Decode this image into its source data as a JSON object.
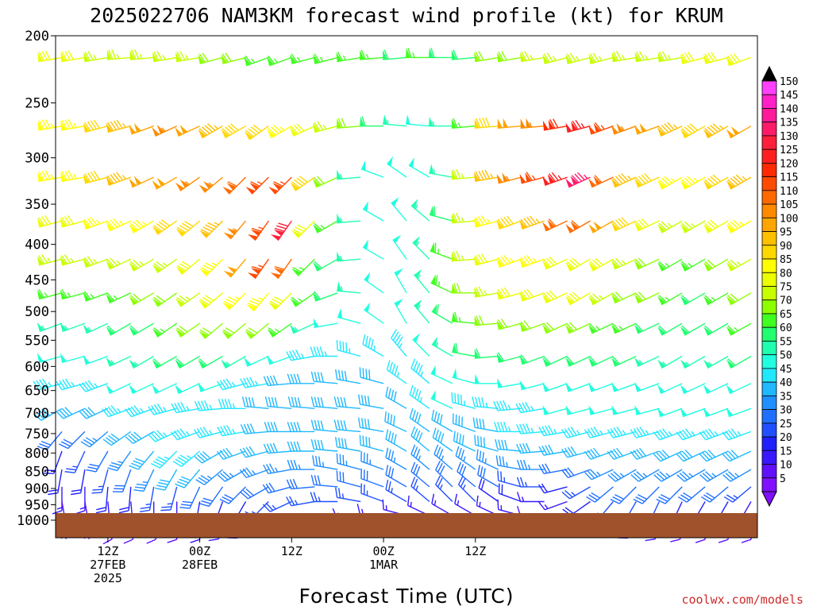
{
  "chart_data": {
    "type": "wind-barb-time-height",
    "title": "2025022706 NAM3KM forecast wind profile (kt) for KRUM",
    "xlabel": "Forecast Time (UTC)",
    "ylabel": "",
    "y_ticks": [
      200,
      250,
      300,
      350,
      400,
      450,
      500,
      550,
      600,
      650,
      700,
      750,
      800,
      850,
      900,
      950,
      1000
    ],
    "ylim": [
      1000,
      200
    ],
    "x_ticks": [
      {
        "label": "12Z",
        "date": "27FEB",
        "year": "2025"
      },
      {
        "label": "00Z",
        "date": "28FEB",
        "year": ""
      },
      {
        "label": "12Z",
        "date": "",
        "year": ""
      },
      {
        "label": "00Z",
        "date": "1MAR",
        "year": ""
      },
      {
        "label": "12Z",
        "date": "",
        "year": ""
      }
    ],
    "colorbar": {
      "levels": [
        150,
        145,
        140,
        135,
        130,
        125,
        120,
        115,
        110,
        105,
        100,
        95,
        90,
        85,
        80,
        75,
        70,
        65,
        60,
        55,
        50,
        45,
        40,
        35,
        30,
        25,
        20,
        15,
        10,
        5
      ],
      "colors": [
        "#ff40ff",
        "#ff20c8",
        "#ff1a9a",
        "#ff1a6a",
        "#ff1f3a",
        "#ff1f1f",
        "#ff2a00",
        "#ff4a00",
        "#ff6a00",
        "#ff8a00",
        "#ffa500",
        "#ffc000",
        "#ffd800",
        "#ffff00",
        "#ecff00",
        "#c8ff00",
        "#8cff00",
        "#40ff20",
        "#20ff70",
        "#20ffb0",
        "#20ffe0",
        "#20e8ff",
        "#20b8ff",
        "#2090ff",
        "#2070ff",
        "#2050ff",
        "#2020ff",
        "#3818ff",
        "#6010ff",
        "#8010ff"
      ]
    },
    "wind_levels_hpa": [
      215,
      270,
      320,
      370,
      420,
      470,
      520,
      580,
      635,
      690,
      745,
      795,
      845,
      895,
      940,
      985
    ],
    "times_h": [
      0,
      3,
      6,
      9,
      12,
      15,
      18,
      21,
      24,
      27,
      30,
      33,
      36,
      39,
      42,
      45,
      48,
      51,
      54,
      57,
      60,
      63,
      66,
      69,
      72,
      75,
      78,
      81,
      84,
      87,
      90
    ],
    "wind_speed_kt": [
      [
        80,
        80,
        75,
        75,
        75,
        75,
        75,
        70,
        70,
        65,
        65,
        65,
        65,
        65,
        65,
        60,
        65,
        60,
        60,
        70,
        70,
        75,
        75,
        75,
        75,
        75,
        75,
        75,
        80,
        80,
        80
      ],
      [
        85,
        85,
        90,
        95,
        100,
        105,
        100,
        95,
        90,
        90,
        85,
        80,
        75,
        70,
        60,
        55,
        50,
        55,
        65,
        90,
        100,
        105,
        120,
        125,
        115,
        105,
        100,
        95,
        90,
        95,
        100
      ],
      [
        85,
        85,
        90,
        95,
        100,
        100,
        105,
        105,
        110,
        115,
        115,
        90,
        70,
        55,
        50,
        50,
        50,
        55,
        75,
        95,
        105,
        115,
        125,
        135,
        110,
        95,
        90,
        85,
        85,
        90,
        95
      ],
      [
        80,
        80,
        85,
        85,
        85,
        90,
        90,
        95,
        105,
        115,
        130,
        80,
        65,
        55,
        50,
        50,
        55,
        60,
        75,
        85,
        90,
        95,
        110,
        110,
        100,
        90,
        80,
        75,
        75,
        80,
        85
      ],
      [
        75,
        75,
        75,
        75,
        75,
        75,
        80,
        85,
        100,
        115,
        110,
        65,
        60,
        55,
        50,
        50,
        55,
        65,
        75,
        80,
        85,
        85,
        80,
        80,
        80,
        75,
        70,
        65,
        65,
        70,
        75
      ],
      [
        65,
        65,
        65,
        65,
        70,
        70,
        75,
        80,
        85,
        85,
        80,
        65,
        60,
        55,
        50,
        50,
        55,
        65,
        70,
        75,
        80,
        80,
        80,
        80,
        75,
        70,
        70,
        65,
        60,
        65,
        70
      ],
      [
        55,
        55,
        55,
        60,
        60,
        65,
        70,
        70,
        70,
        70,
        65,
        55,
        50,
        50,
        50,
        50,
        55,
        60,
        65,
        70,
        70,
        70,
        70,
        70,
        65,
        65,
        60,
        60,
        60,
        60,
        65
      ],
      [
        50,
        50,
        50,
        55,
        55,
        60,
        60,
        60,
        55,
        50,
        50,
        45,
        45,
        45,
        45,
        45,
        50,
        55,
        60,
        60,
        60,
        60,
        60,
        60,
        60,
        60,
        55,
        55,
        55,
        55,
        60
      ],
      [
        45,
        45,
        45,
        50,
        50,
        50,
        50,
        50,
        45,
        45,
        40,
        40,
        40,
        40,
        40,
        45,
        45,
        50,
        50,
        50,
        50,
        50,
        50,
        50,
        50,
        50,
        50,
        50,
        50,
        50,
        50
      ],
      [
        40,
        40,
        40,
        45,
        45,
        45,
        45,
        45,
        45,
        40,
        40,
        40,
        40,
        40,
        40,
        40,
        45,
        50,
        45,
        45,
        45,
        45,
        50,
        50,
        50,
        50,
        50,
        50,
        50,
        50,
        50
      ],
      [
        30,
        30,
        35,
        40,
        40,
        45,
        45,
        45,
        45,
        40,
        40,
        40,
        40,
        40,
        40,
        40,
        40,
        40,
        40,
        40,
        45,
        45,
        45,
        45,
        45,
        45,
        45,
        45,
        45,
        45,
        45
      ],
      [
        20,
        25,
        30,
        35,
        40,
        45,
        45,
        40,
        40,
        40,
        40,
        40,
        40,
        40,
        40,
        40,
        40,
        40,
        40,
        40,
        40,
        40,
        40,
        40,
        40,
        40,
        40,
        40,
        40,
        40,
        40
      ],
      [
        20,
        20,
        25,
        30,
        35,
        40,
        40,
        35,
        35,
        35,
        35,
        35,
        35,
        35,
        35,
        35,
        35,
        35,
        35,
        35,
        35,
        35,
        30,
        30,
        35,
        35,
        35,
        35,
        35,
        35,
        35
      ],
      [
        15,
        15,
        20,
        20,
        25,
        25,
        30,
        30,
        30,
        30,
        30,
        30,
        30,
        30,
        30,
        30,
        30,
        30,
        30,
        30,
        25,
        25,
        20,
        25,
        30,
        30,
        30,
        30,
        30,
        30,
        25
      ],
      [
        10,
        10,
        15,
        15,
        15,
        15,
        20,
        20,
        20,
        25,
        25,
        25,
        25,
        25,
        25,
        25,
        25,
        25,
        25,
        20,
        20,
        15,
        15,
        20,
        25,
        25,
        25,
        20,
        20,
        20,
        15
      ],
      [
        5,
        5,
        10,
        10,
        10,
        10,
        15,
        15,
        15,
        15,
        15,
        15,
        15,
        15,
        15,
        15,
        15,
        15,
        15,
        15,
        15,
        10,
        10,
        10,
        15,
        15,
        15,
        10,
        10,
        10,
        10
      ]
    ],
    "wind_dir_deg": [
      [
        260,
        260,
        260,
        265,
        265,
        260,
        260,
        255,
        255,
        250,
        250,
        255,
        255,
        260,
        265,
        265,
        270,
        270,
        265,
        260,
        260,
        260,
        255,
        255,
        255,
        260,
        260,
        260,
        255,
        255,
        250
      ],
      [
        260,
        260,
        255,
        255,
        250,
        245,
        245,
        240,
        240,
        235,
        240,
        245,
        255,
        265,
        270,
        275,
        275,
        270,
        265,
        265,
        265,
        265,
        260,
        255,
        250,
        250,
        250,
        245,
        240,
        240,
        240
      ],
      [
        260,
        260,
        255,
        250,
        245,
        240,
        235,
        230,
        225,
        225,
        225,
        235,
        245,
        265,
        290,
        305,
        300,
        280,
        265,
        260,
        255,
        255,
        250,
        245,
        245,
        245,
        245,
        240,
        240,
        240,
        240
      ],
      [
        255,
        255,
        250,
        245,
        240,
        235,
        230,
        225,
        220,
        215,
        215,
        225,
        240,
        265,
        300,
        320,
        310,
        285,
        265,
        255,
        250,
        250,
        245,
        240,
        240,
        245,
        245,
        240,
        240,
        240,
        240
      ],
      [
        255,
        255,
        250,
        245,
        240,
        235,
        230,
        225,
        220,
        215,
        215,
        225,
        240,
        265,
        300,
        325,
        315,
        290,
        265,
        255,
        250,
        250,
        245,
        240,
        240,
        245,
        245,
        240,
        240,
        240,
        240
      ],
      [
        255,
        255,
        250,
        245,
        240,
        235,
        235,
        230,
        225,
        220,
        225,
        235,
        250,
        275,
        305,
        330,
        320,
        295,
        270,
        260,
        255,
        250,
        245,
        240,
        240,
        245,
        245,
        240,
        240,
        240,
        240
      ],
      [
        250,
        250,
        245,
        240,
        240,
        235,
        235,
        230,
        230,
        230,
        235,
        245,
        260,
        285,
        305,
        330,
        320,
        300,
        275,
        265,
        255,
        250,
        245,
        245,
        245,
        245,
        245,
        240,
        240,
        240,
        240
      ],
      [
        255,
        255,
        250,
        245,
        240,
        240,
        240,
        240,
        240,
        245,
        250,
        260,
        270,
        285,
        300,
        320,
        315,
        300,
        280,
        265,
        255,
        250,
        245,
        245,
        245,
        245,
        245,
        240,
        240,
        240,
        240
      ],
      [
        255,
        255,
        250,
        245,
        245,
        245,
        245,
        250,
        255,
        260,
        265,
        270,
        275,
        280,
        285,
        305,
        310,
        295,
        285,
        270,
        260,
        255,
        250,
        250,
        250,
        250,
        250,
        245,
        245,
        245,
        245
      ],
      [
        240,
        245,
        245,
        250,
        250,
        255,
        260,
        265,
        270,
        275,
        275,
        275,
        275,
        275,
        280,
        300,
        305,
        295,
        285,
        275,
        265,
        260,
        255,
        255,
        255,
        255,
        255,
        250,
        250,
        250,
        250
      ],
      [
        220,
        225,
        230,
        235,
        240,
        245,
        250,
        255,
        260,
        265,
        270,
        270,
        275,
        275,
        280,
        295,
        305,
        300,
        290,
        280,
        270,
        265,
        260,
        255,
        255,
        255,
        255,
        250,
        250,
        250,
        250
      ],
      [
        200,
        205,
        210,
        215,
        220,
        225,
        230,
        240,
        250,
        255,
        265,
        270,
        275,
        280,
        285,
        300,
        310,
        305,
        295,
        285,
        275,
        265,
        260,
        255,
        250,
        250,
        250,
        245,
        245,
        245,
        245
      ],
      [
        190,
        190,
        195,
        200,
        205,
        210,
        220,
        230,
        240,
        250,
        260,
        270,
        280,
        285,
        290,
        300,
        310,
        310,
        305,
        295,
        280,
        270,
        260,
        250,
        245,
        240,
        240,
        240,
        240,
        240,
        240
      ],
      [
        180,
        180,
        185,
        185,
        190,
        195,
        205,
        215,
        225,
        240,
        255,
        265,
        275,
        285,
        290,
        300,
        310,
        315,
        310,
        300,
        285,
        270,
        255,
        240,
        230,
        225,
        225,
        225,
        230,
        230,
        230
      ],
      [
        170,
        170,
        175,
        175,
        180,
        180,
        190,
        200,
        210,
        225,
        245,
        260,
        270,
        280,
        290,
        300,
        310,
        315,
        315,
        305,
        290,
        270,
        250,
        235,
        220,
        210,
        205,
        205,
        210,
        210,
        210
      ],
      [
        170,
        170,
        170,
        175,
        175,
        180,
        180,
        190,
        200,
        210,
        225,
        245,
        255,
        265,
        275,
        285,
        295,
        300,
        300,
        295,
        285,
        270,
        255,
        235,
        215,
        200,
        190,
        185,
        180,
        180,
        180
      ]
    ],
    "ground_label": "",
    "credit": "coolwx.com/models"
  }
}
